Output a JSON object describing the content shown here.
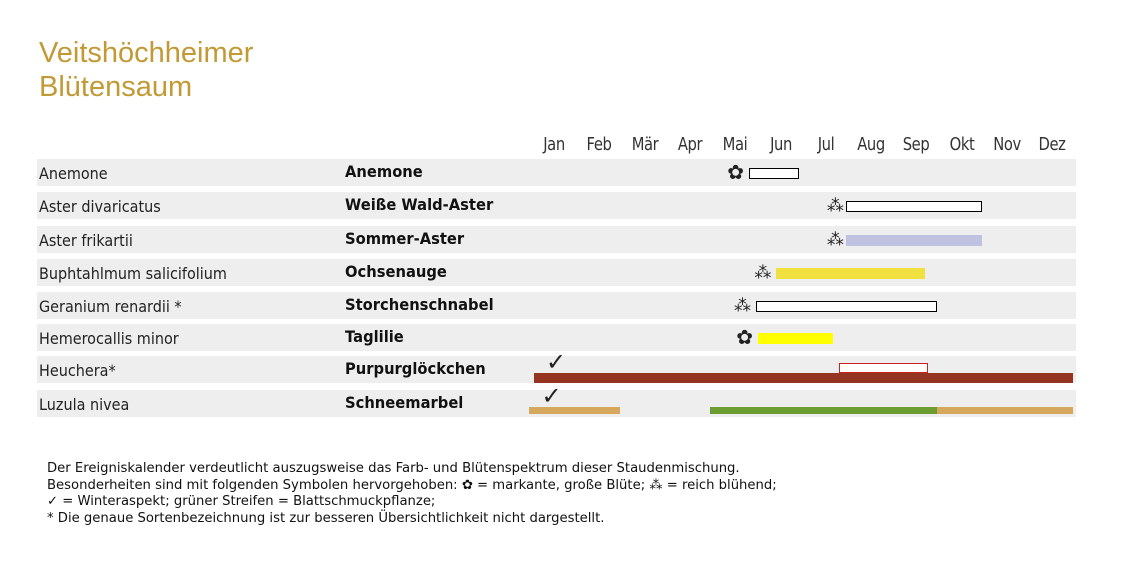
{
  "title_line1": "Veitshöchheimer",
  "title_line2": "Blütensaum",
  "chart_data": {
    "type": "bar",
    "months": [
      "Jan",
      "Feb",
      "Mär",
      "Apr",
      "Mai",
      "Jun",
      "Jul",
      "Aug",
      "Sep",
      "Okt",
      "Nov",
      "Dez"
    ],
    "rows": [
      {
        "latin": "Anemone",
        "german": "Anemone",
        "symbol": "big",
        "symbol_month": 4.0,
        "bars": [
          {
            "start": 4.3,
            "end": 5.4,
            "fill": "#ffffff",
            "border": "#000000",
            "level": "mid"
          }
        ]
      },
      {
        "latin": "Aster divaricatus",
        "german": "Weiße Wald-Aster",
        "symbol": "many",
        "symbol_month": 6.2,
        "bars": [
          {
            "start": 6.45,
            "end": 9.45,
            "fill": "#ffffff",
            "border": "#000000",
            "level": "mid"
          }
        ]
      },
      {
        "latin": "Aster frikartii",
        "german": "Sommer-Aster",
        "symbol": "many",
        "symbol_month": 6.2,
        "bars": [
          {
            "start": 6.45,
            "end": 9.45,
            "fill": "#c0c0e0",
            "border": "none",
            "level": "mid"
          }
        ]
      },
      {
        "latin": "Buphtahlmum salicifolium",
        "german": "Ochsenauge",
        "symbol": "many",
        "symbol_month": 4.6,
        "bars": [
          {
            "start": 4.9,
            "end": 8.2,
            "fill": "#f0e040",
            "border": "none",
            "level": "mid"
          }
        ]
      },
      {
        "latin": "Geranium renardii *",
        "german": "Storchenschnabel",
        "symbol": "many",
        "symbol_month": 4.15,
        "bars": [
          {
            "start": 4.45,
            "end": 8.45,
            "fill": "#ffffff",
            "border": "#000000",
            "level": "mid"
          }
        ]
      },
      {
        "latin": "Hemerocallis minor",
        "german": "Taglilie",
        "symbol": "big",
        "symbol_month": 4.2,
        "bars": [
          {
            "start": 4.5,
            "end": 6.15,
            "fill": "#ffff00",
            "border": "none",
            "level": "mid"
          }
        ]
      },
      {
        "latin": "Heuchera*",
        "german": "Purpurglöckchen",
        "symbol": "check",
        "symbol_month": 0.0,
        "bars": [
          {
            "start": 6.3,
            "end": 8.25,
            "fill": "#ffffff",
            "border": "#cc2020",
            "level": "upper"
          },
          {
            "start": -0.45,
            "end": 11.45,
            "fill": "#943522",
            "border": "none",
            "level": "low"
          }
        ]
      },
      {
        "latin": "Luzula nivea",
        "german": "Schneemarbel",
        "symbol": "check",
        "symbol_month": -0.1,
        "bars": [
          {
            "start": -0.55,
            "end": 1.45,
            "fill": "#d6a85e",
            "border": "none",
            "level": "bottom"
          },
          {
            "start": 3.45,
            "end": 8.45,
            "fill": "#6a9c32",
            "border": "none",
            "level": "bottom"
          },
          {
            "start": 8.45,
            "end": 11.45,
            "fill": "#d6a85e",
            "border": "none",
            "level": "bottom"
          }
        ]
      }
    ]
  },
  "notes": [
    "Der Ereigniskalender verdeutlicht auszugsweise das Farb- und Blütenspektrum dieser Staudenmischung.",
    "Besonderheiten sind mit folgenden Symbolen hervorgehoben: ✿ = markante, große Blüte; ⁂ = reich blühend;",
    "✓ = Winteraspekt; grüner Streifen = Blattschmuckpflanze;",
    "* Die genaue Sortenbezeichnung ist zur besseren Übersichtlichkeit nicht dargestellt."
  ]
}
